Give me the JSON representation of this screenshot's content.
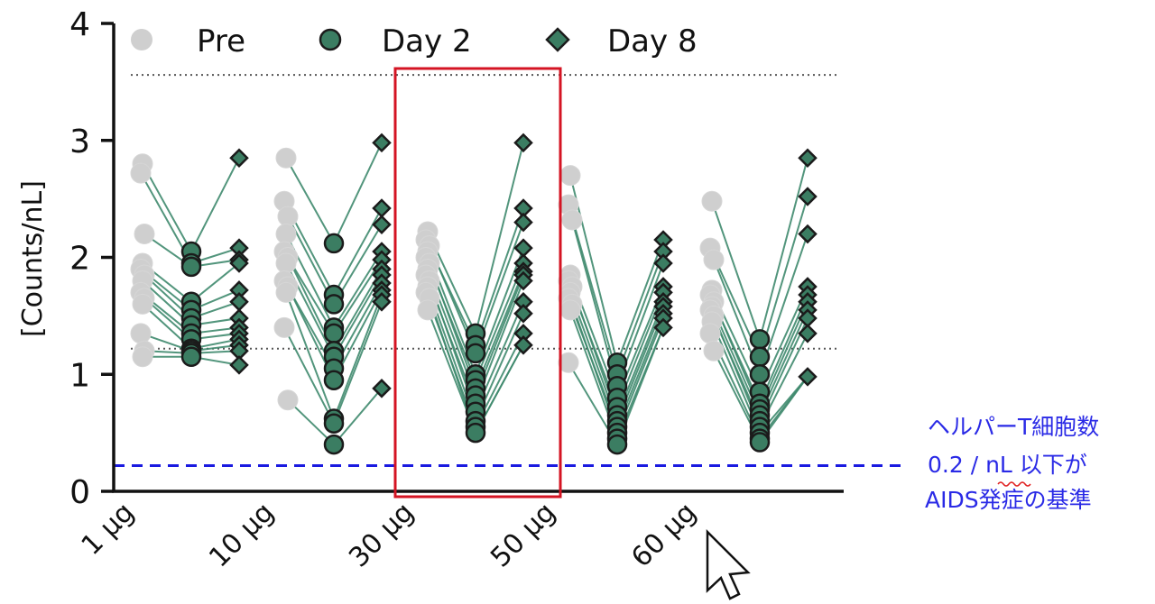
{
  "annotation": {
    "line1": "ヘルパーT細胞数",
    "line2": "0.2 / nL 以下が",
    "line3": "AIDS発症の基準"
  },
  "icons": {
    "cursor": "mouse-pointer-icon"
  },
  "colors": {
    "pre": "#cfcfcf",
    "day2": "#3b7d62",
    "day8": "#3b7d62",
    "line": "#3f8a6e",
    "threshold": "#1a1ae0",
    "highlight": "#d41423"
  },
  "chart_data": {
    "type": "scatter",
    "title": "",
    "xlabel": "",
    "ylabel": "[Counts/nL]",
    "ylim": [
      0,
      4
    ],
    "yticks": [
      "0",
      "1",
      "2",
      "3",
      "4"
    ],
    "categories": [
      "1 µg",
      "10 µg",
      "30 µg",
      "50 µg",
      "60 µg"
    ],
    "legend": {
      "placement": "top",
      "entries": [
        {
          "label": "Pre",
          "marker": "circle"
        },
        {
          "label": "Day 2",
          "marker": "circle"
        },
        {
          "label": "Day 8",
          "marker": "diamond"
        }
      ]
    },
    "reference_lines": [
      {
        "y": 3.56,
        "style": "dotted"
      },
      {
        "y": 1.22,
        "style": "dotted"
      },
      {
        "y": 0.22,
        "style": "dashed"
      }
    ],
    "highlighted_category": "30 µg",
    "groups": [
      {
        "category": "1 µg",
        "pre": [
          2.8,
          2.72,
          2.2,
          1.95,
          1.9,
          1.85,
          1.8,
          1.7,
          1.65,
          1.6,
          1.35,
          1.2,
          1.15
        ],
        "day2": [
          2.05,
          1.95,
          1.92,
          1.62,
          1.55,
          1.48,
          1.42,
          1.35,
          1.3,
          1.22,
          1.2,
          1.18,
          1.15
        ],
        "day8": [
          2.85,
          2.08,
          1.98,
          1.95,
          1.72,
          1.62,
          1.48,
          1.4,
          1.35,
          1.3,
          1.25,
          1.2,
          1.08
        ]
      },
      {
        "category": "10 µg",
        "pre": [
          2.85,
          2.48,
          2.35,
          2.2,
          2.05,
          2.0,
          1.95,
          1.8,
          1.75,
          1.7,
          1.4,
          0.78
        ],
        "day2": [
          2.12,
          1.68,
          1.6,
          1.4,
          1.35,
          1.2,
          1.15,
          1.05,
          0.95,
          0.62,
          0.58,
          0.4
        ],
        "day8": [
          2.98,
          2.42,
          2.28,
          2.05,
          1.98,
          1.9,
          1.85,
          1.78,
          1.72,
          1.68,
          1.62,
          0.88
        ]
      },
      {
        "category": "30 µg",
        "pre": [
          2.22,
          2.15,
          2.1,
          2.05,
          2.0,
          1.95,
          1.9,
          1.85,
          1.8,
          1.75,
          1.7,
          1.65,
          1.55
        ],
        "day2": [
          1.35,
          1.25,
          1.18,
          1.0,
          0.95,
          0.88,
          0.82,
          0.75,
          0.68,
          0.6,
          0.55,
          0.5
        ],
        "day8": [
          2.98,
          2.42,
          2.3,
          2.08,
          1.95,
          1.88,
          1.85,
          1.8,
          1.62,
          1.52,
          1.35,
          1.25
        ]
      },
      {
        "category": "50 µg",
        "pre": [
          2.7,
          2.45,
          2.32,
          1.85,
          1.8,
          1.75,
          1.7,
          1.65,
          1.6,
          1.55,
          1.1
        ],
        "day2": [
          1.1,
          1.0,
          0.9,
          0.8,
          0.72,
          0.65,
          0.6,
          0.55,
          0.5,
          0.45,
          0.4
        ],
        "day8": [
          2.15,
          2.05,
          1.95,
          1.75,
          1.7,
          1.62,
          1.58,
          1.52,
          1.48,
          1.4
        ]
      },
      {
        "category": "60 µg",
        "pre": [
          2.48,
          2.08,
          1.98,
          1.72,
          1.68,
          1.62,
          1.58,
          1.55,
          1.5,
          1.45,
          1.35,
          1.2
        ],
        "day2": [
          1.3,
          1.15,
          1.0,
          0.85,
          0.75,
          0.7,
          0.65,
          0.6,
          0.55,
          0.5,
          0.45,
          0.42
        ],
        "day8": [
          2.85,
          2.52,
          2.2,
          1.75,
          1.68,
          1.62,
          1.55,
          1.48,
          1.35,
          0.98
        ]
      }
    ]
  }
}
